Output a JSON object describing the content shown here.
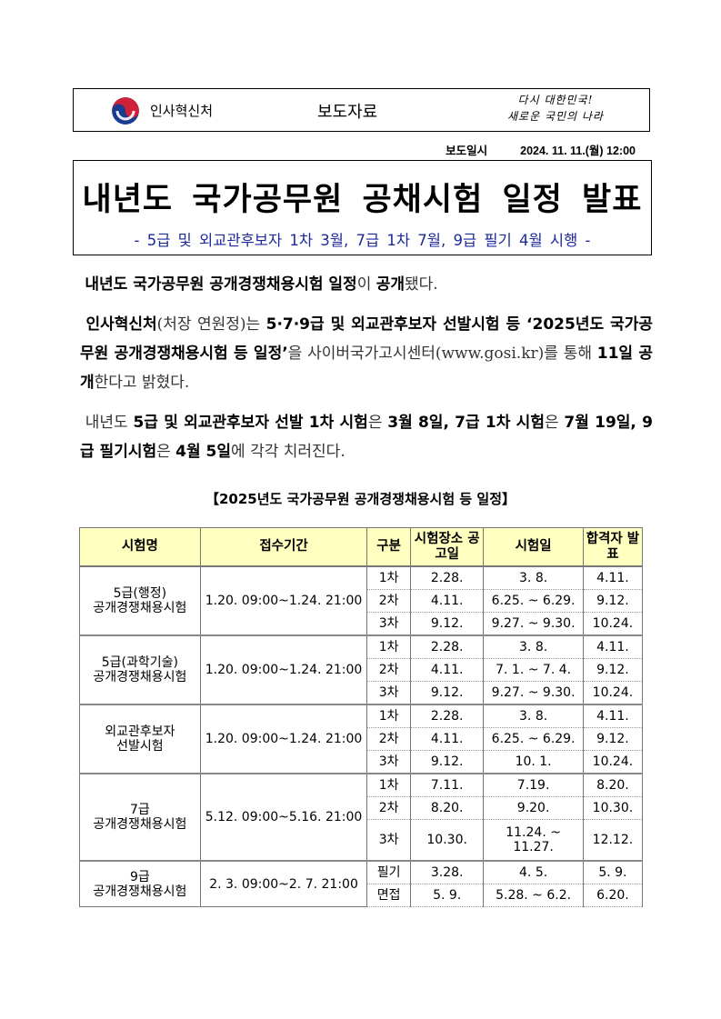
{
  "header": {
    "org_name": "인사혁신처",
    "doc_type": "보도자료",
    "slogan_lines": [
      "다시 대한민국!",
      "새로운 국민의 나라"
    ],
    "logo_colors": {
      "blue": "#1b3b8f",
      "red": "#d0213a"
    }
  },
  "release": {
    "label": "보도일시",
    "value": "2024. 11. 11.(월) 12:00"
  },
  "title": "내년도 국가공무원 공채시험 일정 발표",
  "subtitle": "- 5급 및 외교관후보자 1차 3월, 7급 1차 7월, 9급 필기 4월 시행 -",
  "subtitle_color": "#1e2a9a",
  "paragraphs": [
    [
      {
        "text": "내년도 국가공무원 공개경쟁채용시험 일정",
        "bold": true
      },
      {
        "text": "이 ",
        "bold": false
      },
      {
        "text": "공개",
        "bold": true
      },
      {
        "text": "됐다.",
        "bold": false
      }
    ],
    [
      {
        "text": "인사혁신처",
        "bold": true
      },
      {
        "text": "(처장 연원정)는 ",
        "bold": false
      },
      {
        "text": "5·7·9급 및 외교관후보자 선발시험 등 ‘2025년도 국가공무원 공개경쟁채용시험 등 일정’",
        "bold": true
      },
      {
        "text": "을 사이버국가고시센터(www.gosi.kr)를 통해 ",
        "bold": false
      },
      {
        "text": "11일 공개",
        "bold": true
      },
      {
        "text": "한다고 밝혔다.",
        "bold": false
      }
    ],
    [
      {
        "text": "내년도 ",
        "bold": false
      },
      {
        "text": "5급 및 외교관후보자 선발 1차 시험",
        "bold": true
      },
      {
        "text": "은 ",
        "bold": false
      },
      {
        "text": "3월 8일, 7급 1차 시험",
        "bold": true
      },
      {
        "text": "은 ",
        "bold": false
      },
      {
        "text": "7월 19일, 9급 필기시험",
        "bold": true
      },
      {
        "text": "은 ",
        "bold": false
      },
      {
        "text": "4월 5일",
        "bold": true
      },
      {
        "text": "에 각각 치러진다.",
        "bold": false
      }
    ]
  ],
  "table": {
    "caption": "【2025년도 국가공무원 공개경쟁채용시험 등 일정】",
    "header_bg": "#ffffc0",
    "columns": [
      "시험명",
      "접수기간",
      "구분",
      "시험장소 공고일",
      "시험일",
      "합격자 발표"
    ],
    "groups": [
      {
        "name_lines": [
          "5급(행정)",
          "공개경쟁채용시험"
        ],
        "period": "1.20. 09:00~1.24. 21:00",
        "rows": [
          {
            "type": "1차",
            "notice": "2.28.",
            "exam": "3. 8.",
            "result": "4.11."
          },
          {
            "type": "2차",
            "notice": "4.11.",
            "exam": "6.25. ~ 6.29.",
            "result": "9.12."
          },
          {
            "type": "3차",
            "notice": "9.12.",
            "exam": "9.27. ~ 9.30.",
            "result": "10.24."
          }
        ]
      },
      {
        "name_lines": [
          "5급(과학기술)",
          "공개경쟁채용시험"
        ],
        "period": "1.20. 09:00~1.24. 21:00",
        "rows": [
          {
            "type": "1차",
            "notice": "2.28.",
            "exam": "3. 8.",
            "result": "4.11."
          },
          {
            "type": "2차",
            "notice": "4.11.",
            "exam": "7. 1. ~ 7. 4.",
            "result": "9.12."
          },
          {
            "type": "3차",
            "notice": "9.12.",
            "exam": "9.27. ~ 9.30.",
            "result": "10.24."
          }
        ]
      },
      {
        "name_lines": [
          "외교관후보자",
          "선발시험"
        ],
        "period": "1.20. 09:00~1.24. 21:00",
        "rows": [
          {
            "type": "1차",
            "notice": "2.28.",
            "exam": "3. 8.",
            "result": "4.11."
          },
          {
            "type": "2차",
            "notice": "4.11.",
            "exam": "6.25. ~ 6.29.",
            "result": "9.12."
          },
          {
            "type": "3차",
            "notice": "9.12.",
            "exam": "10. 1.",
            "result": "10.24."
          }
        ]
      },
      {
        "name_lines": [
          "7급",
          "공개경쟁채용시험"
        ],
        "period": "5.12. 09:00~5.16. 21:00",
        "rows": [
          {
            "type": "1차",
            "notice": "7.11.",
            "exam": "7.19.",
            "result": "8.20."
          },
          {
            "type": "2차",
            "notice": "8.20.",
            "exam": "9.20.",
            "result": "10.30."
          },
          {
            "type": "3차",
            "notice": "10.30.",
            "exam": "11.24. ~ 11.27.",
            "result": "12.12."
          }
        ]
      },
      {
        "name_lines": [
          "9급",
          "공개경쟁채용시험"
        ],
        "period": "2. 3. 09:00~2. 7. 21:00",
        "rows": [
          {
            "type": "필기",
            "notice": "3.28.",
            "exam": "4. 5.",
            "result": "5. 9."
          },
          {
            "type": "면접",
            "notice": "5. 9.",
            "exam": "5.28. ~ 6.2.",
            "result": "6.20."
          }
        ]
      }
    ]
  }
}
